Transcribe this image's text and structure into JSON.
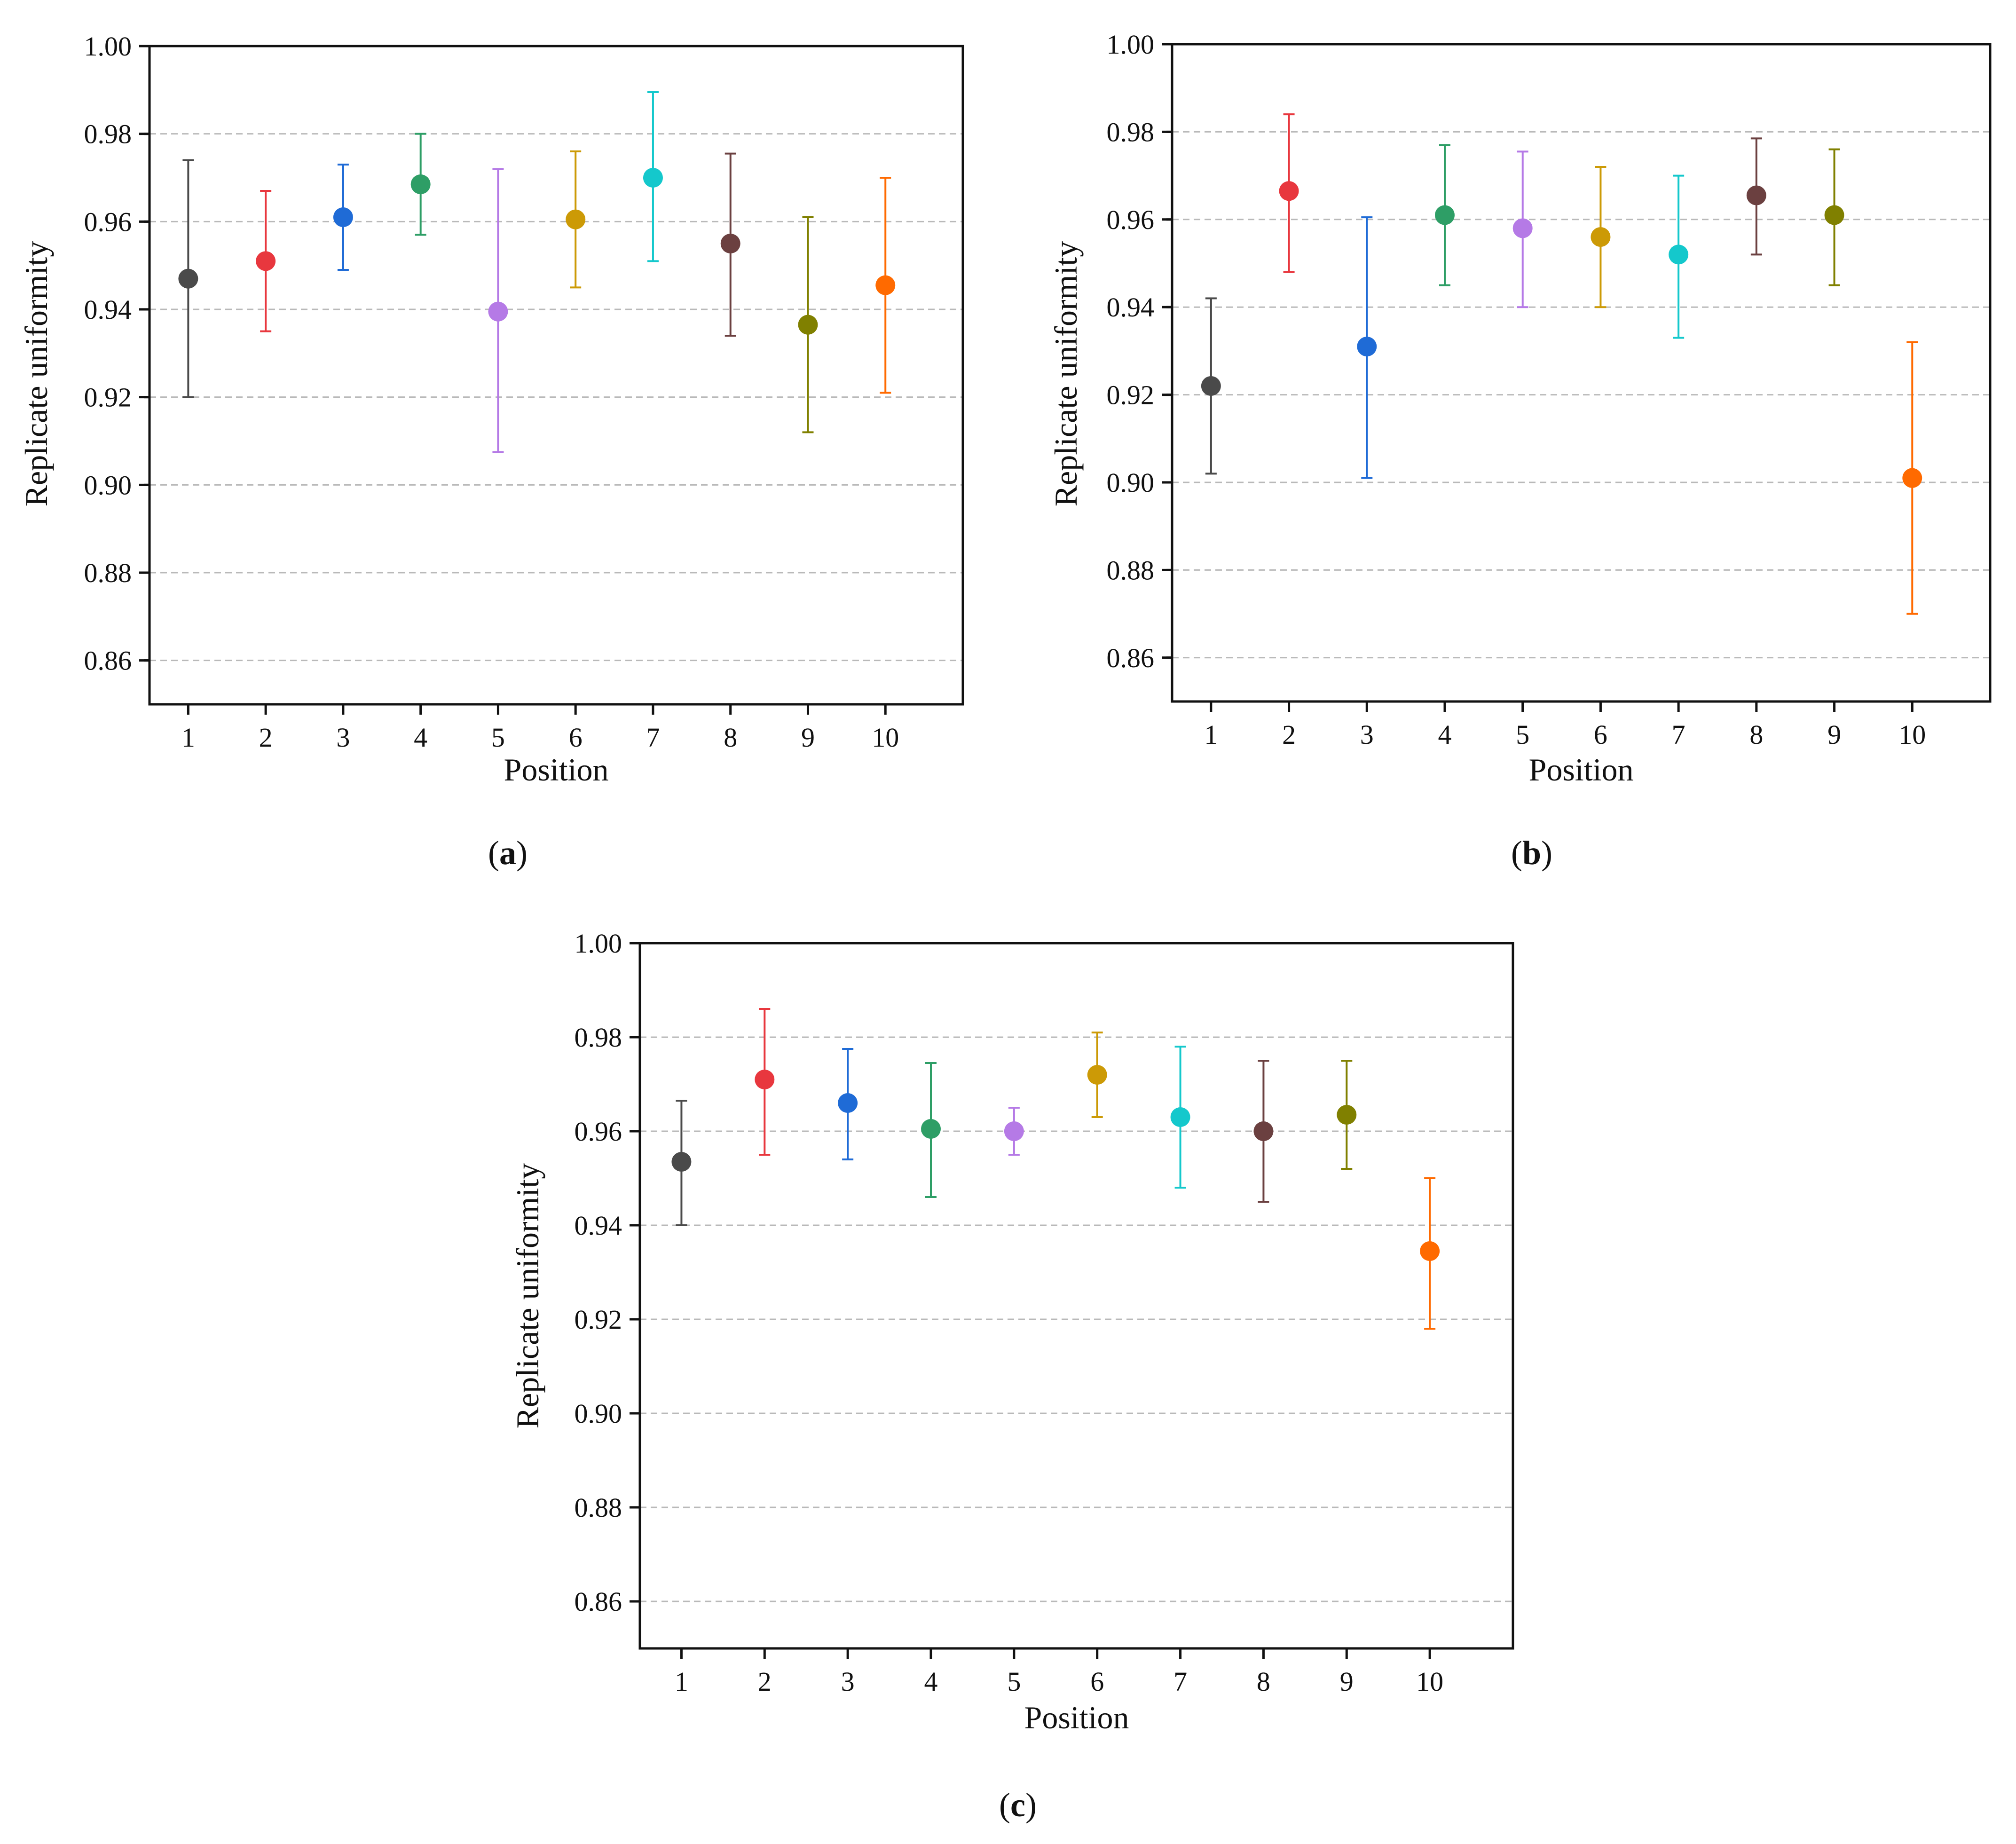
{
  "figure": {
    "palette": [
      "#4a4a4a",
      "#e8373e",
      "#1f6bd6",
      "#2e9e66",
      "#b57ae6",
      "#cc9a06",
      "#14c8cc",
      "#6b4040",
      "#808000",
      "#ff6a00"
    ]
  },
  "chart_data": [
    {
      "type": "scatter",
      "panel": "a",
      "panel_label": {
        "open": "(",
        "letter": "a",
        "close": ")"
      },
      "xlabel": "Position",
      "ylabel": "Replicate uniformity",
      "ylim": [
        0.85,
        1.0
      ],
      "yticks": [
        "0.86",
        "0.88",
        "0.90",
        "0.92",
        "0.94",
        "0.96",
        "0.98",
        "1.00"
      ],
      "categories": [
        "1",
        "2",
        "3",
        "4",
        "5",
        "6",
        "7",
        "8",
        "9",
        "10"
      ],
      "values": [
        0.947,
        0.951,
        0.961,
        0.9685,
        0.9395,
        0.9605,
        0.97,
        0.955,
        0.9365,
        0.9455
      ],
      "error_upper": [
        0.974,
        0.967,
        0.973,
        0.98,
        0.972,
        0.976,
        0.9895,
        0.9755,
        0.961,
        0.97
      ],
      "error_lower": [
        0.92,
        0.935,
        0.949,
        0.957,
        0.9075,
        0.945,
        0.951,
        0.934,
        0.912,
        0.921
      ],
      "grid": true
    },
    {
      "type": "scatter",
      "panel": "b",
      "panel_label": {
        "open": "(",
        "letter": "b",
        "close": ")"
      },
      "xlabel": "Position",
      "ylabel": "Replicate uniformity",
      "ylim": [
        0.85,
        1.0
      ],
      "yticks": [
        "0.86",
        "0.88",
        "0.90",
        "0.92",
        "0.94",
        "0.96",
        "0.98",
        "1.00"
      ],
      "categories": [
        "1",
        "2",
        "3",
        "4",
        "5",
        "6",
        "7",
        "8",
        "9",
        "10"
      ],
      "values": [
        0.922,
        0.9665,
        0.931,
        0.961,
        0.958,
        0.956,
        0.952,
        0.9655,
        0.961,
        0.901
      ],
      "error_upper": [
        0.942,
        0.984,
        0.9605,
        0.977,
        0.9755,
        0.972,
        0.97,
        0.9785,
        0.976,
        0.932
      ],
      "error_lower": [
        0.902,
        0.948,
        0.901,
        0.945,
        0.94,
        0.94,
        0.933,
        0.952,
        0.945,
        0.87
      ],
      "grid": true
    },
    {
      "type": "scatter",
      "panel": "c",
      "panel_label": {
        "open": "(",
        "letter": "c",
        "close": ")"
      },
      "xlabel": "Position",
      "ylabel": "Replicate uniformity",
      "ylim": [
        0.85,
        1.0
      ],
      "yticks": [
        "0.86",
        "0.88",
        "0.90",
        "0.92",
        "0.94",
        "0.96",
        "0.98",
        "1.00"
      ],
      "categories": [
        "1",
        "2",
        "3",
        "4",
        "5",
        "6",
        "7",
        "8",
        "9",
        "10"
      ],
      "values": [
        0.9535,
        0.971,
        0.966,
        0.9605,
        0.96,
        0.972,
        0.963,
        0.96,
        0.9635,
        0.9345
      ],
      "error_upper": [
        0.9665,
        0.986,
        0.9775,
        0.9745,
        0.965,
        0.981,
        0.978,
        0.975,
        0.975,
        0.95
      ],
      "error_lower": [
        0.94,
        0.955,
        0.954,
        0.946,
        0.955,
        0.963,
        0.948,
        0.945,
        0.952,
        0.918
      ],
      "grid": true
    }
  ]
}
